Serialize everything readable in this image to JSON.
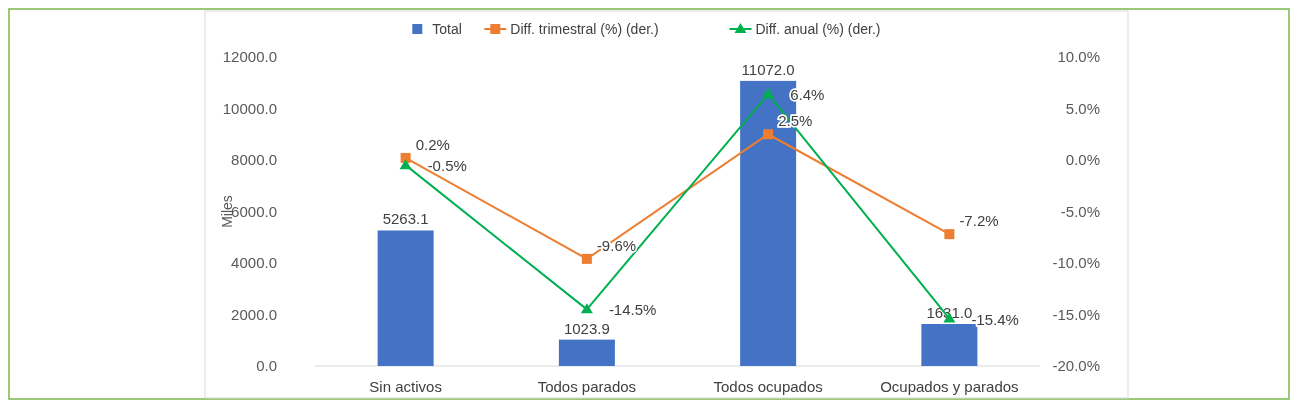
{
  "chart_data": {
    "type": "bar",
    "ylabel": "Miles",
    "categories": [
      "Sin activos",
      "Todos parados",
      "Todos ocupados",
      "Ocupados y parados"
    ],
    "series": [
      {
        "name": "Total",
        "color": "#4472c4",
        "values": [
          5263.1,
          1023.9,
          11072.0,
          1631.0
        ],
        "value_labels": [
          "5263.1",
          "1023.9",
          "11072.0",
          "1631.0"
        ]
      },
      {
        "name": "Diff. trimestral (%) (der.)",
        "type": "line",
        "axis": "y2",
        "color": "#ed7d31",
        "marker": "square",
        "values": [
          0.2,
          -9.6,
          2.5,
          -7.2
        ],
        "value_labels": [
          "0.2%",
          "-9.6%",
          "2.5%",
          "-7.2%"
        ]
      },
      {
        "name": "Diff. anual (%) (der.)",
        "type": "line",
        "axis": "y2",
        "color": "#00b050",
        "marker": "triangle",
        "values": [
          -0.5,
          -14.5,
          6.4,
          -15.4
        ],
        "value_labels": [
          "-0.5%",
          "-14.5%",
          "6.4%",
          "-15.4%"
        ]
      }
    ],
    "ylim": [
      0,
      12000
    ],
    "yticks": [
      {
        "value": 0,
        "label": "0.0"
      },
      {
        "value": 2000,
        "label": "2000.0"
      },
      {
        "value": 4000,
        "label": "4000.0"
      },
      {
        "value": 6000,
        "label": "6000.0"
      },
      {
        "value": 8000,
        "label": "8000.0"
      },
      {
        "value": 10000,
        "label": "10000.0"
      },
      {
        "value": 12000,
        "label": "12000.0"
      }
    ],
    "y2lim": [
      -20,
      10
    ],
    "y2ticks": [
      {
        "value": -20,
        "label": "-20.0%"
      },
      {
        "value": -15,
        "label": "-15.0%"
      },
      {
        "value": -10,
        "label": "-10.0%"
      },
      {
        "value": -5,
        "label": "-5.0%"
      },
      {
        "value": 0,
        "label": "0.0%"
      },
      {
        "value": 5,
        "label": "5.0%"
      },
      {
        "value": 10,
        "label": "10.0%"
      }
    ],
    "legend": "top",
    "grid": false
  }
}
